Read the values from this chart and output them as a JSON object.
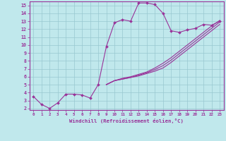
{
  "xlabel": "Windchill (Refroidissement éolien,°C)",
  "bg_color": "#c0e8ec",
  "grid_color": "#98c8d0",
  "line_color": "#993399",
  "xlim": [
    -0.5,
    23.5
  ],
  "ylim": [
    1.8,
    15.5
  ],
  "xticks": [
    0,
    1,
    2,
    3,
    4,
    5,
    6,
    7,
    8,
    9,
    10,
    11,
    12,
    13,
    14,
    15,
    16,
    17,
    18,
    19,
    20,
    21,
    22,
    23
  ],
  "yticks": [
    2,
    3,
    4,
    5,
    6,
    7,
    8,
    9,
    10,
    11,
    12,
    13,
    14,
    15
  ],
  "line1_x": [
    0,
    1,
    2,
    3,
    4,
    5,
    6,
    7,
    8,
    9,
    10,
    11,
    12,
    13,
    14,
    15,
    16,
    17,
    18,
    19,
    20,
    21,
    22,
    23
  ],
  "line1_y": [
    3.5,
    2.5,
    2.0,
    2.7,
    3.8,
    3.8,
    3.7,
    3.3,
    5.0,
    9.8,
    12.8,
    13.2,
    13.0,
    15.3,
    15.3,
    15.1,
    14.0,
    11.8,
    11.6,
    11.9,
    12.1,
    12.6,
    12.5,
    13.0
  ],
  "line2_x": [
    9,
    10,
    11,
    12,
    13,
    14,
    15,
    16,
    17,
    18,
    19,
    20,
    21,
    22,
    23
  ],
  "line2_y": [
    5.0,
    5.5,
    5.7,
    5.9,
    6.1,
    6.4,
    6.7,
    7.1,
    7.8,
    8.6,
    9.4,
    10.2,
    11.0,
    11.8,
    12.6
  ],
  "line3_x": [
    9,
    10,
    11,
    12,
    13,
    14,
    15,
    16,
    17,
    18,
    19,
    20,
    21,
    22,
    23
  ],
  "line3_y": [
    5.0,
    5.5,
    5.7,
    5.9,
    6.2,
    6.5,
    6.9,
    7.4,
    8.1,
    8.9,
    9.7,
    10.5,
    11.3,
    12.1,
    12.9
  ],
  "line4_x": [
    9,
    10,
    11,
    12,
    13,
    14,
    15,
    16,
    17,
    18,
    19,
    20,
    21,
    22,
    23
  ],
  "line4_y": [
    5.0,
    5.5,
    5.8,
    6.0,
    6.3,
    6.6,
    7.1,
    7.7,
    8.4,
    9.2,
    10.0,
    10.8,
    11.6,
    12.4,
    13.1
  ]
}
